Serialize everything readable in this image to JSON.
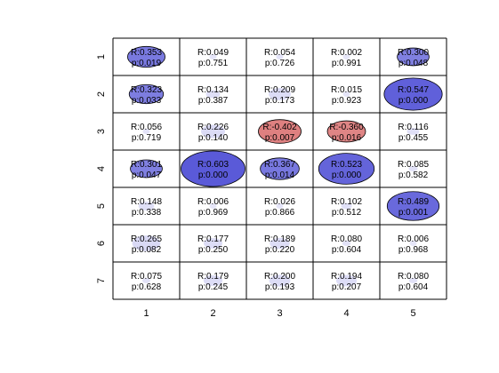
{
  "chart_data": {
    "type": "heatmap",
    "title": "",
    "xlabel": "",
    "ylabel": "",
    "x_categories": [
      "1",
      "2",
      "3",
      "4",
      "5"
    ],
    "y_categories": [
      "1",
      "2",
      "3",
      "4",
      "5",
      "6",
      "7"
    ],
    "cells": [
      [
        {
          "r": "0.353",
          "p": "0.019"
        },
        {
          "r": "0.049",
          "p": "0.751"
        },
        {
          "r": "0.054",
          "p": "0.726"
        },
        {
          "r": "0.002",
          "p": "0.991"
        },
        {
          "r": "0.300",
          "p": "0.048"
        }
      ],
      [
        {
          "r": "0.323",
          "p": "0.033"
        },
        {
          "r": "0.134",
          "p": "0.387"
        },
        {
          "r": "0.209",
          "p": "0.173"
        },
        {
          "r": "0.015",
          "p": "0.923"
        },
        {
          "r": "0.547",
          "p": "0.000"
        }
      ],
      [
        {
          "r": "0.056",
          "p": "0.719"
        },
        {
          "r": "0.226",
          "p": "0.140"
        },
        {
          "r": "-0.402",
          "p": "0.007"
        },
        {
          "r": "-0.360",
          "p": "0.016"
        },
        {
          "r": "0.116",
          "p": "0.455"
        }
      ],
      [
        {
          "r": "0.301",
          "p": "0.047"
        },
        {
          "r": "0.603",
          "p": "0.000"
        },
        {
          "r": "0.367",
          "p": "0.014"
        },
        {
          "r": "0.523",
          "p": "0.000"
        },
        {
          "r": "0.085",
          "p": "0.582"
        }
      ],
      [
        {
          "r": "0.148",
          "p": "0.338"
        },
        {
          "r": "0.006",
          "p": "0.969"
        },
        {
          "r": "0.026",
          "p": "0.866"
        },
        {
          "r": "0.102",
          "p": "0.512"
        },
        {
          "r": "0.489",
          "p": "0.001"
        }
      ],
      [
        {
          "r": "0.265",
          "p": "0.082"
        },
        {
          "r": "0.177",
          "p": "0.250"
        },
        {
          "r": "0.189",
          "p": "0.220"
        },
        {
          "r": "0.080",
          "p": "0.604"
        },
        {
          "r": "0.006",
          "p": "0.968"
        }
      ],
      [
        {
          "r": "0.075",
          "p": "0.628"
        },
        {
          "r": "0.179",
          "p": "0.245"
        },
        {
          "r": "0.200",
          "p": "0.193"
        },
        {
          "r": "0.194",
          "p": "0.207"
        },
        {
          "r": "0.080",
          "p": "0.604"
        }
      ]
    ],
    "colors": {
      "positive_significant": "#5a5ad8",
      "negative_significant": "#d86a6a",
      "positive_faint": "#b7b7ec",
      "negative_faint": "#e6b0b0",
      "grid_line": "#000000"
    },
    "ellipse_radius_rule": "proportional to |R|, border drawn when p < 0.05",
    "grid": true,
    "legend": "none"
  }
}
